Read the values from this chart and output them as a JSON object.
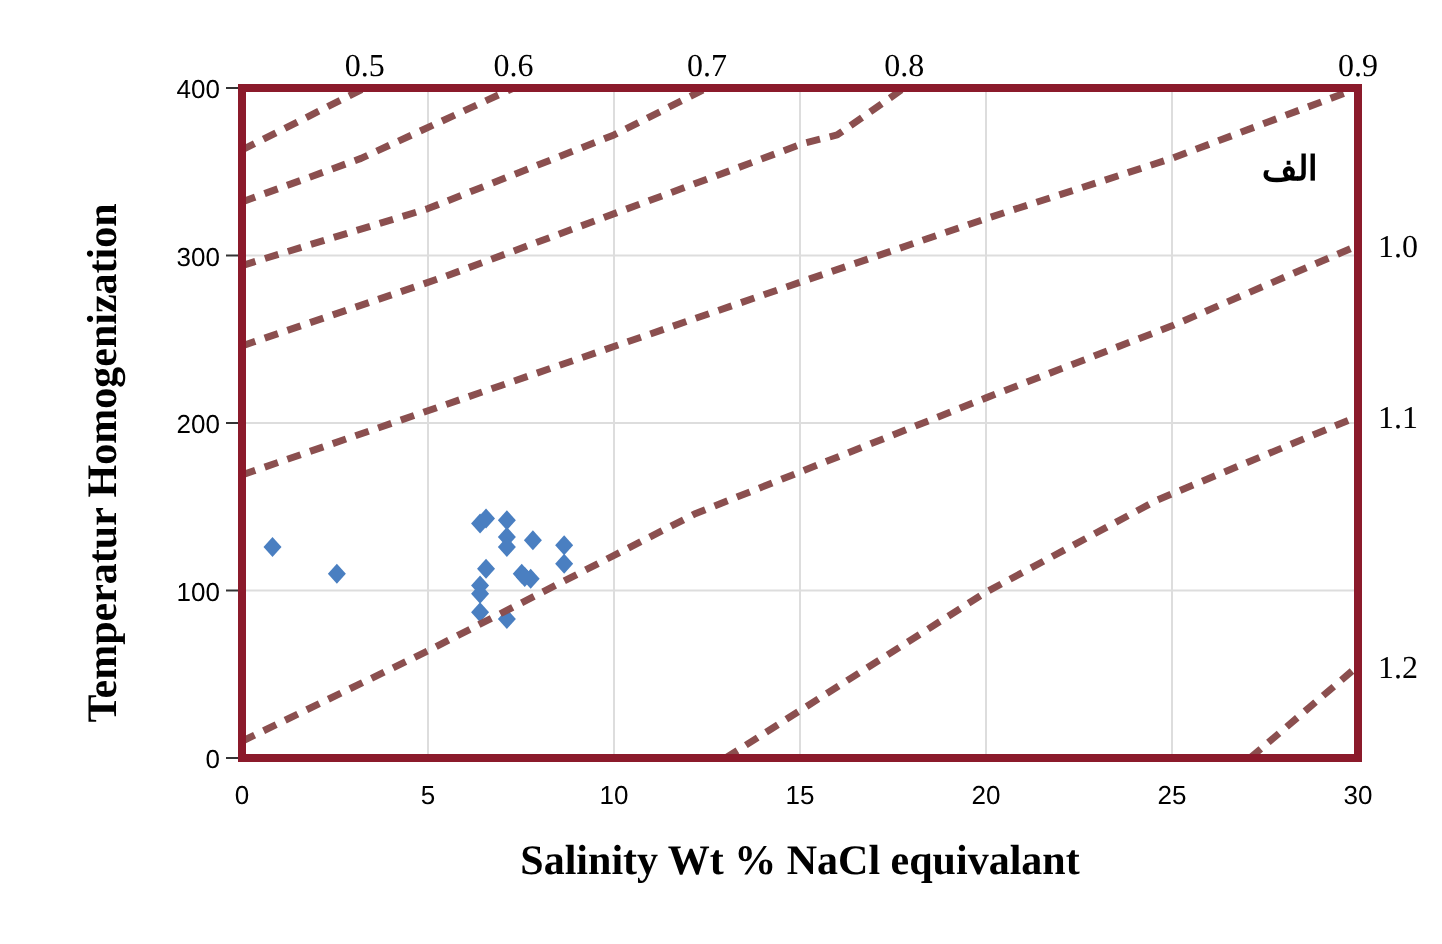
{
  "chart_data": {
    "type": "scatter",
    "xlabel": "Salinity Wt % NaCl equivalant",
    "ylabel": "Temperatur Homogenization",
    "xlim": [
      0,
      30
    ],
    "ylim": [
      0,
      400
    ],
    "xticks": [
      0,
      5,
      10,
      15,
      20,
      25,
      30
    ],
    "yticks": [
      0,
      100,
      200,
      300,
      400
    ],
    "grid": true,
    "annotations": [
      "الف"
    ],
    "series": [
      {
        "marker": "diamond",
        "color": "#4a7fc1",
        "x": [
          0.82,
          2.55,
          6.4,
          6.56,
          7.12,
          7.12,
          7.12,
          7.82,
          8.66,
          8.66,
          6.56,
          7.52,
          7.76,
          6.4,
          6.4,
          6.4,
          7.12,
          7.6
        ],
        "values": [
          126,
          110,
          140,
          143,
          142,
          132,
          126,
          130,
          127,
          116,
          113,
          110,
          107,
          103,
          98,
          87,
          83,
          108
        ]
      },
      {
        "type": "line",
        "name": "0.5",
        "line_style": "dashed",
        "color": "#8b4f4f",
        "x": [
          0,
          3.3
        ],
        "values": [
          363,
          400
        ]
      },
      {
        "type": "line",
        "name": "0.6",
        "line_style": "dashed",
        "color": "#8b4f4f",
        "x": [
          0,
          3.2,
          7.3
        ],
        "values": [
          332,
          358,
          400
        ]
      },
      {
        "type": "line",
        "name": "0.7",
        "line_style": "dashed",
        "color": "#8b4f4f",
        "x": [
          0,
          5,
          10,
          12.5
        ],
        "values": [
          294,
          328,
          372,
          400
        ]
      },
      {
        "type": "line",
        "name": "0.8",
        "line_style": "dashed",
        "color": "#8b4f4f",
        "x": [
          0,
          5.4,
          15.1,
          16,
          17.8
        ],
        "values": [
          246,
          287,
          367,
          372,
          400
        ]
      },
      {
        "type": "line",
        "name": "0.9",
        "line_style": "dashed",
        "color": "#8b4f4f",
        "x": [
          0,
          15,
          20,
          25,
          30
        ],
        "values": [
          169,
          284,
          322,
          358,
          400
        ]
      },
      {
        "type": "line",
        "name": "1.0",
        "line_style": "dashed",
        "color": "#8b4f4f",
        "x": [
          0,
          5,
          12.2,
          20,
          25,
          30
        ],
        "values": [
          10,
          64,
          146,
          215,
          258,
          306
        ]
      },
      {
        "type": "line",
        "name": "1.1",
        "line_style": "dashed",
        "color": "#8b4f4f",
        "x": [
          13,
          20,
          24.6,
          30
        ],
        "values": [
          0,
          99,
          154,
          204
        ]
      },
      {
        "type": "line",
        "name": "1.2",
        "line_style": "dashed",
        "color": "#8b4f4f",
        "x": [
          27.1,
          30
        ],
        "values": [
          0,
          55
        ]
      }
    ]
  }
}
